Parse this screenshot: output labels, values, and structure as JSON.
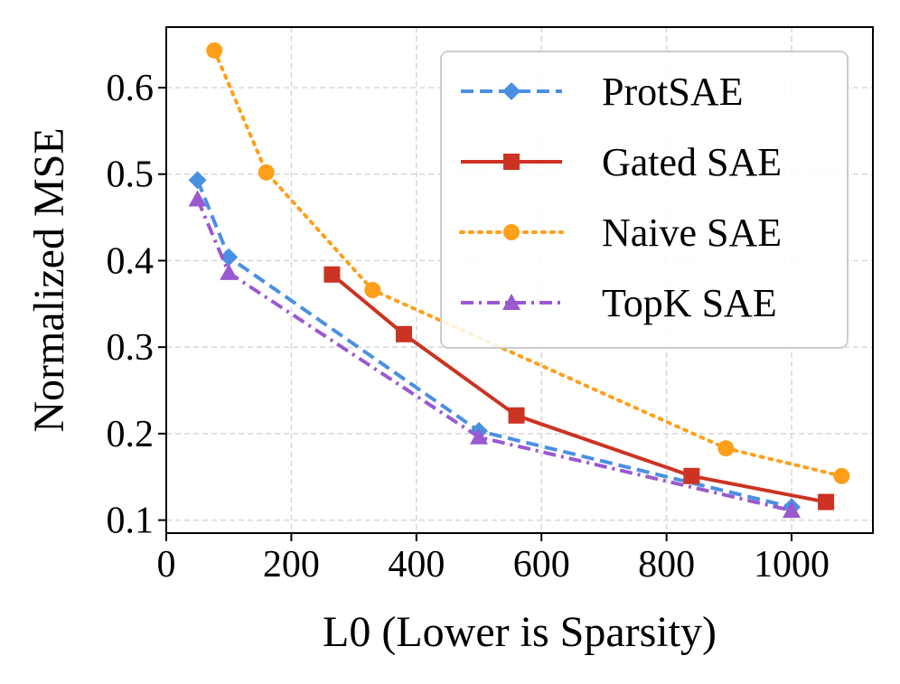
{
  "chart_data": {
    "type": "line",
    "title": "",
    "xlabel": "L0 (Lower is Sparsity)",
    "ylabel": "Normalized MSE",
    "xlim": [
      0,
      1130
    ],
    "ylim": [
      0.085,
      0.67
    ],
    "xticks": [
      0,
      200,
      400,
      600,
      800,
      1000
    ],
    "yticks": [
      0.1,
      0.2,
      0.3,
      0.4,
      0.5,
      0.6
    ],
    "xtick_labels": [
      "0",
      "200",
      "400",
      "600",
      "800",
      "1000"
    ],
    "ytick_labels": [
      "0.1",
      "0.2",
      "0.3",
      "0.4",
      "0.5",
      "0.6"
    ],
    "grid": true,
    "legend_position": "top-right",
    "series": [
      {
        "name": "ProtSAE",
        "color": "#4a90e2",
        "line_style": "dashed",
        "marker": "diamond",
        "x": [
          50,
          100,
          500,
          1000
        ],
        "y": [
          0.493,
          0.404,
          0.203,
          0.115
        ]
      },
      {
        "name": "Gated SAE",
        "color": "#cc3322",
        "line_style": "solid",
        "marker": "square",
        "x": [
          265,
          380,
          560,
          840,
          1055
        ],
        "y": [
          0.384,
          0.315,
          0.221,
          0.151,
          0.121
        ]
      },
      {
        "name": "Naive SAE",
        "color": "#ff9f1a",
        "line_style": "dotted",
        "marker": "circle",
        "x": [
          77,
          160,
          330,
          895,
          1080
        ],
        "y": [
          0.643,
          0.502,
          0.366,
          0.183,
          0.151
        ]
      },
      {
        "name": "TopK SAE",
        "color": "#9b59d0",
        "line_style": "dashdot",
        "marker": "triangle",
        "x": [
          50,
          100,
          500,
          1000
        ],
        "y": [
          0.471,
          0.386,
          0.196,
          0.111
        ]
      }
    ]
  }
}
